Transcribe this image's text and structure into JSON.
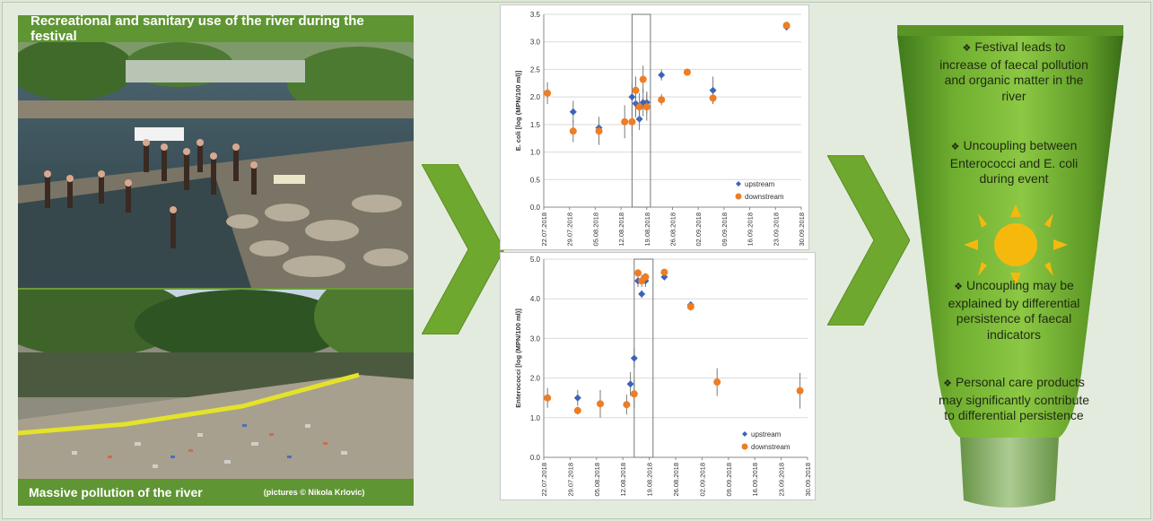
{
  "photos": {
    "top_caption": "Recreational and sanitary use of the river  during the festival",
    "bottom_caption": "Massive pollution of the river",
    "credit": "(pictures © Nikola Krlovic)"
  },
  "conclusions": [
    {
      "bullet": "❖",
      "text": "Festival leads to increase of faecal pollution and organic matter in the river"
    },
    {
      "bullet": "❖",
      "text": "Uncoupling between Enterococci and E. coli during event"
    },
    {
      "bullet": "❖",
      "text": "Uncoupling may be explained by differential persistence of faecal indicators"
    },
    {
      "bullet": "❖",
      "text": "Personal care products may significantly contribute to differential persistence"
    }
  ],
  "colors": {
    "upstream": "#3a64b8",
    "downstream": "#ee7d24",
    "panel_green": "#5f9533",
    "tube_green": "#6fa82e"
  },
  "chart_data": [
    {
      "type": "scatter",
      "ylabel": "E. coli [log (MPN/100 ml)]",
      "xlabel": "",
      "ylim": [
        0,
        3.5
      ],
      "yticks": [
        "0.0",
        "0.5",
        "1.0",
        "1.5",
        "2.0",
        "2.5",
        "3.0",
        "3.5"
      ],
      "xticks": [
        "22.07.2018",
        "29.07.2018",
        "05.08.2018",
        "12.08.2018",
        "19.08.2018",
        "26.08.2018",
        "02.09.2018",
        "09.09.2018",
        "16.09.2018",
        "23.09.2018",
        "30.09.2018"
      ],
      "xlim": [
        "2018-07-22",
        "2018-09-30"
      ],
      "event_window": [
        "2018-08-15",
        "2018-08-20"
      ],
      "legend": "bottom-right",
      "series": [
        {
          "name": "upstream",
          "points": [
            [
              "2018-07-30",
              1.73,
              0.2
            ],
            [
              "2018-08-06",
              1.44,
              0.2
            ],
            [
              "2018-08-15",
              2.0,
              0.25
            ],
            [
              "2018-08-16",
              1.88,
              0.25
            ],
            [
              "2018-08-17",
              1.6,
              0.2
            ],
            [
              "2018-08-18",
              1.9,
              0.25
            ],
            [
              "2018-08-19",
              1.9,
              0.2
            ],
            [
              "2018-08-23",
              2.4,
              0.1
            ],
            [
              "2018-08-30",
              2.45,
              0.05
            ],
            [
              "2018-09-06",
              2.12,
              0.25
            ],
            [
              "2018-09-26",
              3.27,
              0.05
            ]
          ]
        },
        {
          "name": "downstream",
          "points": [
            [
              "2018-07-23",
              2.07,
              0.2
            ],
            [
              "2018-07-30",
              1.38,
              0.2
            ],
            [
              "2018-08-06",
              1.38,
              0.25
            ],
            [
              "2018-08-13",
              1.55,
              0.3
            ],
            [
              "2018-08-15",
              1.55,
              0.25
            ],
            [
              "2018-08-16",
              2.12,
              0.25
            ],
            [
              "2018-08-17",
              1.82,
              0.25
            ],
            [
              "2018-08-18",
              2.32,
              0.25
            ],
            [
              "2018-08-19",
              1.82,
              0.25
            ],
            [
              "2018-08-23",
              1.95,
              0.1
            ],
            [
              "2018-08-30",
              2.45,
              0.05
            ],
            [
              "2018-09-06",
              1.98,
              0.1
            ],
            [
              "2018-09-26",
              3.3,
              0.05
            ]
          ]
        }
      ]
    },
    {
      "type": "scatter",
      "ylabel": "Enterococci [log (MPN/100 ml)]",
      "xlabel": "",
      "ylim": [
        0,
        5
      ],
      "yticks": [
        "0.0",
        "1.0",
        "2.0",
        "3.0",
        "4.0",
        "5.0"
      ],
      "xticks": [
        "22.07.2018",
        "29.07.2018",
        "05.08.2018",
        "12.08.2018",
        "19.08.2018",
        "26.08.2018",
        "02.09.2018",
        "09.09.2018",
        "16.09.2018",
        "23.09.2018",
        "30.09.2018"
      ],
      "xlim": [
        "2018-07-22",
        "2018-09-30"
      ],
      "event_window": [
        "2018-08-15",
        "2018-08-20"
      ],
      "legend": "bottom-right",
      "series": [
        {
          "name": "upstream",
          "points": [
            [
              "2018-07-31",
              1.5,
              0.2
            ],
            [
              "2018-08-06",
              1.35,
              0.35
            ],
            [
              "2018-08-14",
              1.85,
              0.3
            ],
            [
              "2018-08-15",
              2.5,
              0.25
            ],
            [
              "2018-08-16",
              4.45,
              0.15
            ],
            [
              "2018-08-17",
              4.12,
              0.1
            ],
            [
              "2018-08-18",
              4.45,
              0.15
            ],
            [
              "2018-08-23",
              4.55,
              0.05
            ],
            [
              "2018-08-30",
              3.85,
              0.05
            ]
          ]
        },
        {
          "name": "downstream",
          "points": [
            [
              "2018-07-23",
              1.5,
              0.25
            ],
            [
              "2018-07-31",
              1.18,
              0.1
            ],
            [
              "2018-08-06",
              1.35,
              0.25
            ],
            [
              "2018-08-13",
              1.33,
              0.25
            ],
            [
              "2018-08-15",
              1.6,
              0.35
            ],
            [
              "2018-08-16",
              4.65,
              0.1
            ],
            [
              "2018-08-17",
              4.45,
              0.15
            ],
            [
              "2018-08-18",
              4.55,
              0.1
            ],
            [
              "2018-08-23",
              4.67,
              0.05
            ],
            [
              "2018-08-30",
              3.8,
              0.1
            ],
            [
              "2018-09-06",
              1.9,
              0.35
            ],
            [
              "2018-09-28",
              1.68,
              0.45
            ]
          ]
        }
      ]
    }
  ]
}
